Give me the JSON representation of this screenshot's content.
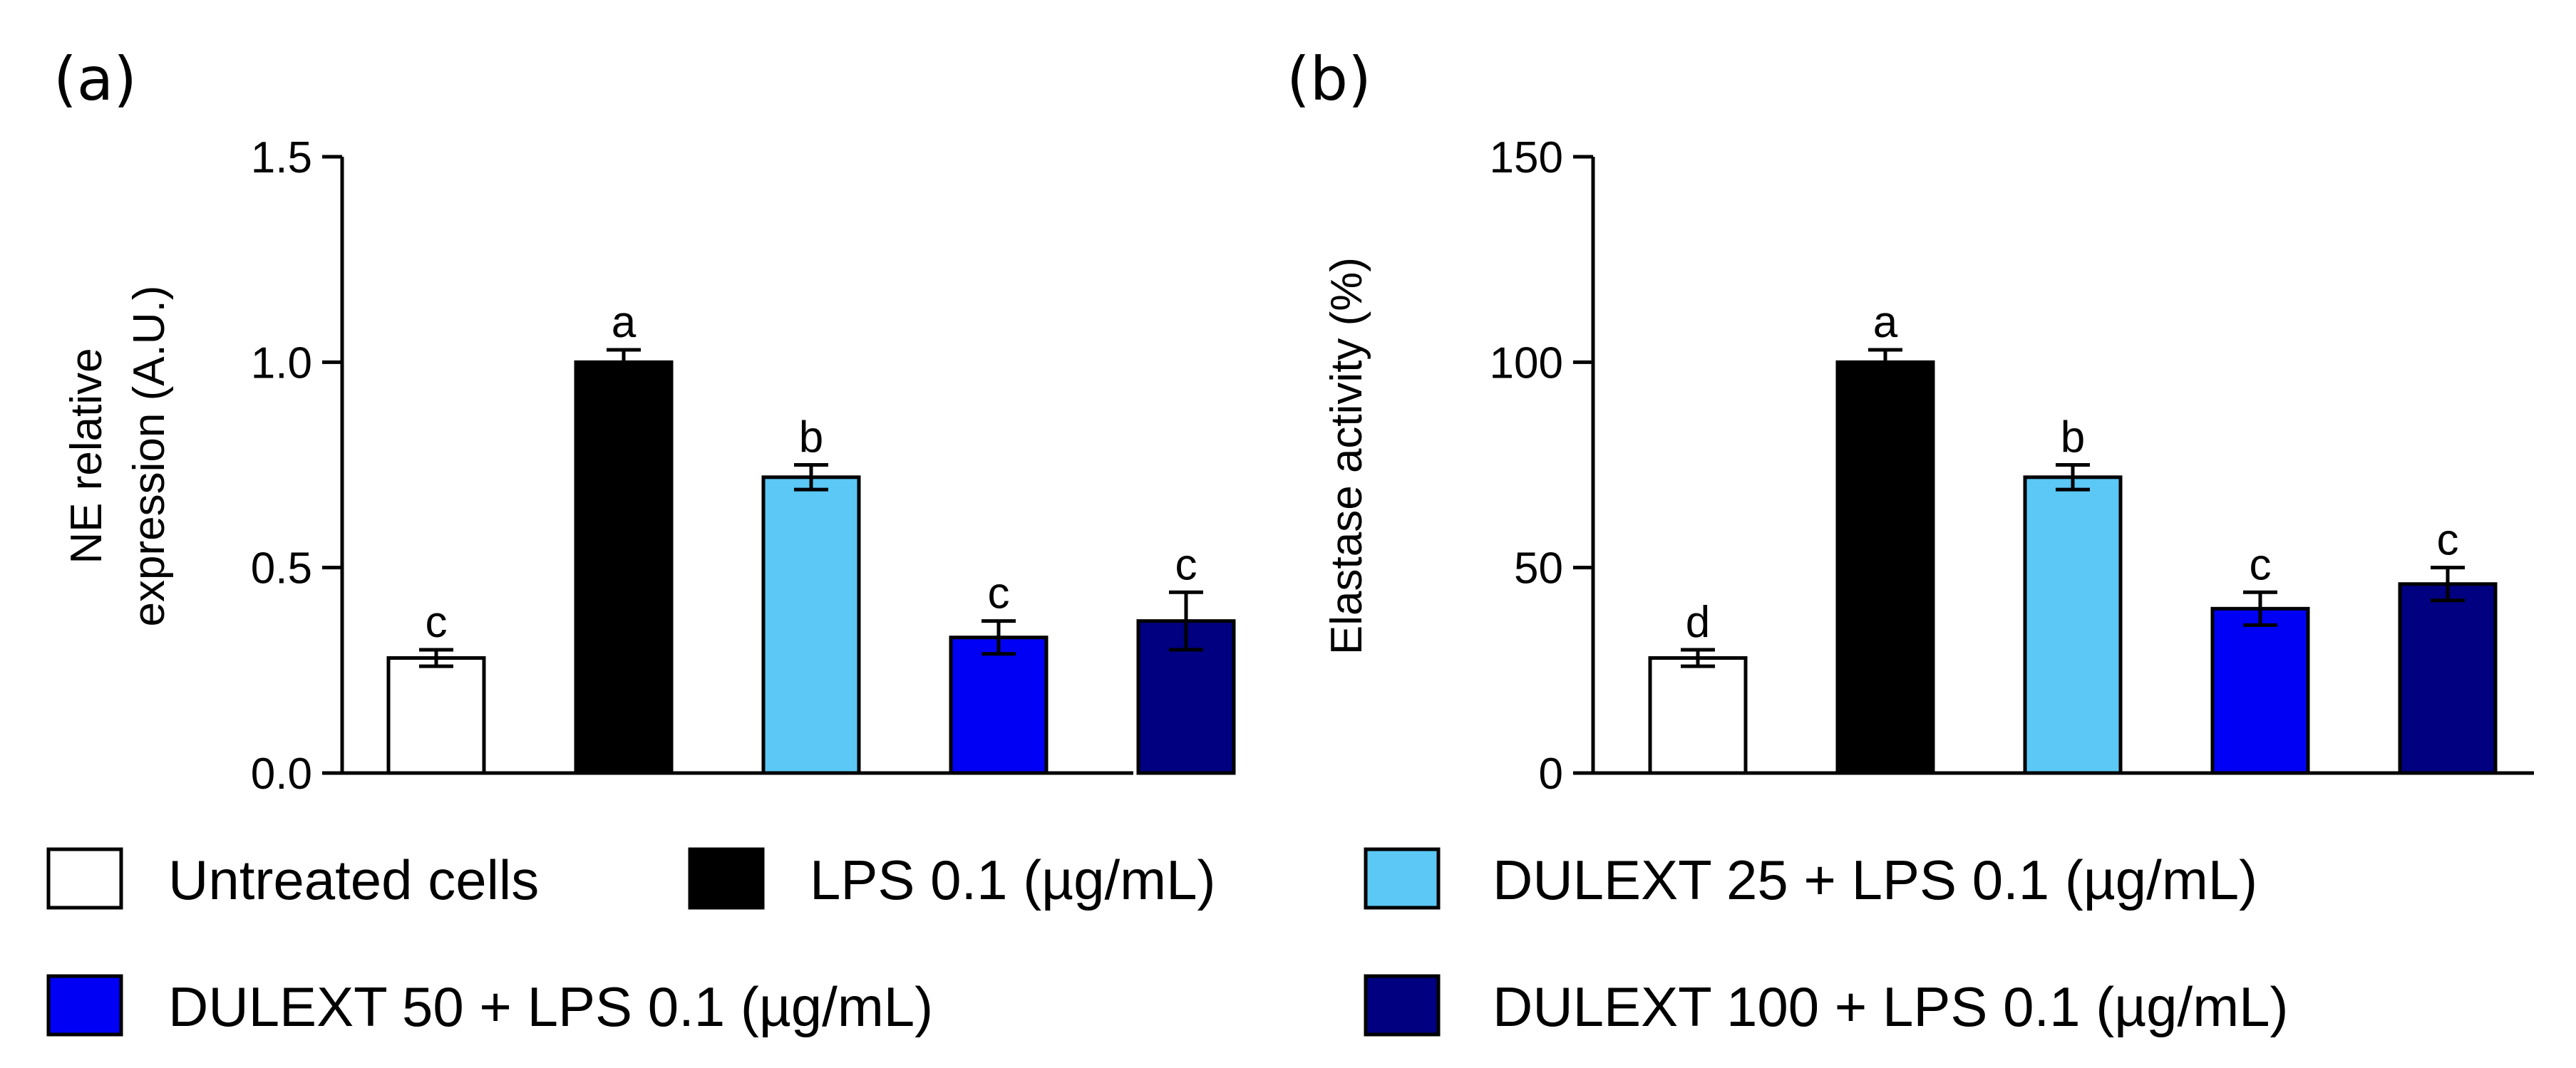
{
  "chart_data": [
    {
      "type": "bar",
      "panel_label": "(a)",
      "ylabel_lines": [
        "NE relative",
        "expression (A.U.)"
      ],
      "ylim": [
        0,
        1.5
      ],
      "yticks": [
        0.0,
        0.5,
        1.0,
        1.5
      ],
      "ytick_labels": [
        "0.0",
        "0.5",
        "1.0",
        "1.5"
      ],
      "categories": [
        "Untreated cells",
        "LPS 0.1 (µg/mL)",
        "DULEXT 25 + LPS 0.1 (µg/mL)",
        "DULEXT 50 + LPS  0.1 (µg/mL)",
        "DULEXT 100 + LPS 0.1 (µg/mL)"
      ],
      "values": [
        0.28,
        1.0,
        0.72,
        0.33,
        0.37
      ],
      "errors": [
        0.02,
        0.03,
        0.03,
        0.04,
        0.07
      ],
      "significance": [
        "c",
        "a",
        "b",
        "c",
        "c"
      ],
      "colors": [
        "#ffffff",
        "#000000",
        "#5bc8f5",
        "#0000f5",
        "#000080"
      ],
      "grid": false
    },
    {
      "type": "bar",
      "panel_label": "(b)",
      "ylabel_lines": [
        "Elastase activity (%)"
      ],
      "ylim": [
        0,
        150
      ],
      "yticks": [
        0,
        50,
        100,
        150
      ],
      "ytick_labels": [
        "0",
        "50",
        "100",
        "150"
      ],
      "categories": [
        "Untreated cells",
        "LPS 0.1 (µg/mL)",
        "DULEXT 25 + LPS 0.1 (µg/mL)",
        "DULEXT 50 + LPS  0.1 (µg/mL)",
        "DULEXT 100 + LPS 0.1 (µg/mL)"
      ],
      "values": [
        28,
        100,
        72,
        40,
        46
      ],
      "errors": [
        2,
        3,
        3,
        4,
        4
      ],
      "significance": [
        "d",
        "a",
        "b",
        "c",
        "c"
      ],
      "colors": [
        "#ffffff",
        "#000000",
        "#5bc8f5",
        "#0000f5",
        "#000080"
      ],
      "grid": false
    }
  ],
  "legend": {
    "placement": "bottom",
    "entries": [
      {
        "label": "Untreated cells",
        "color": "#ffffff"
      },
      {
        "label": "LPS 0.1 (µg/mL)",
        "color": "#000000"
      },
      {
        "label": "DULEXT 25 + LPS 0.1 (µg/mL)",
        "color": "#5bc8f5"
      },
      {
        "label": "DULEXT 50 + LPS  0.1 (µg/mL)",
        "color": "#0000f5"
      },
      {
        "label": "DULEXT 100 + LPS 0.1 (µg/mL)",
        "color": "#000080"
      }
    ]
  }
}
